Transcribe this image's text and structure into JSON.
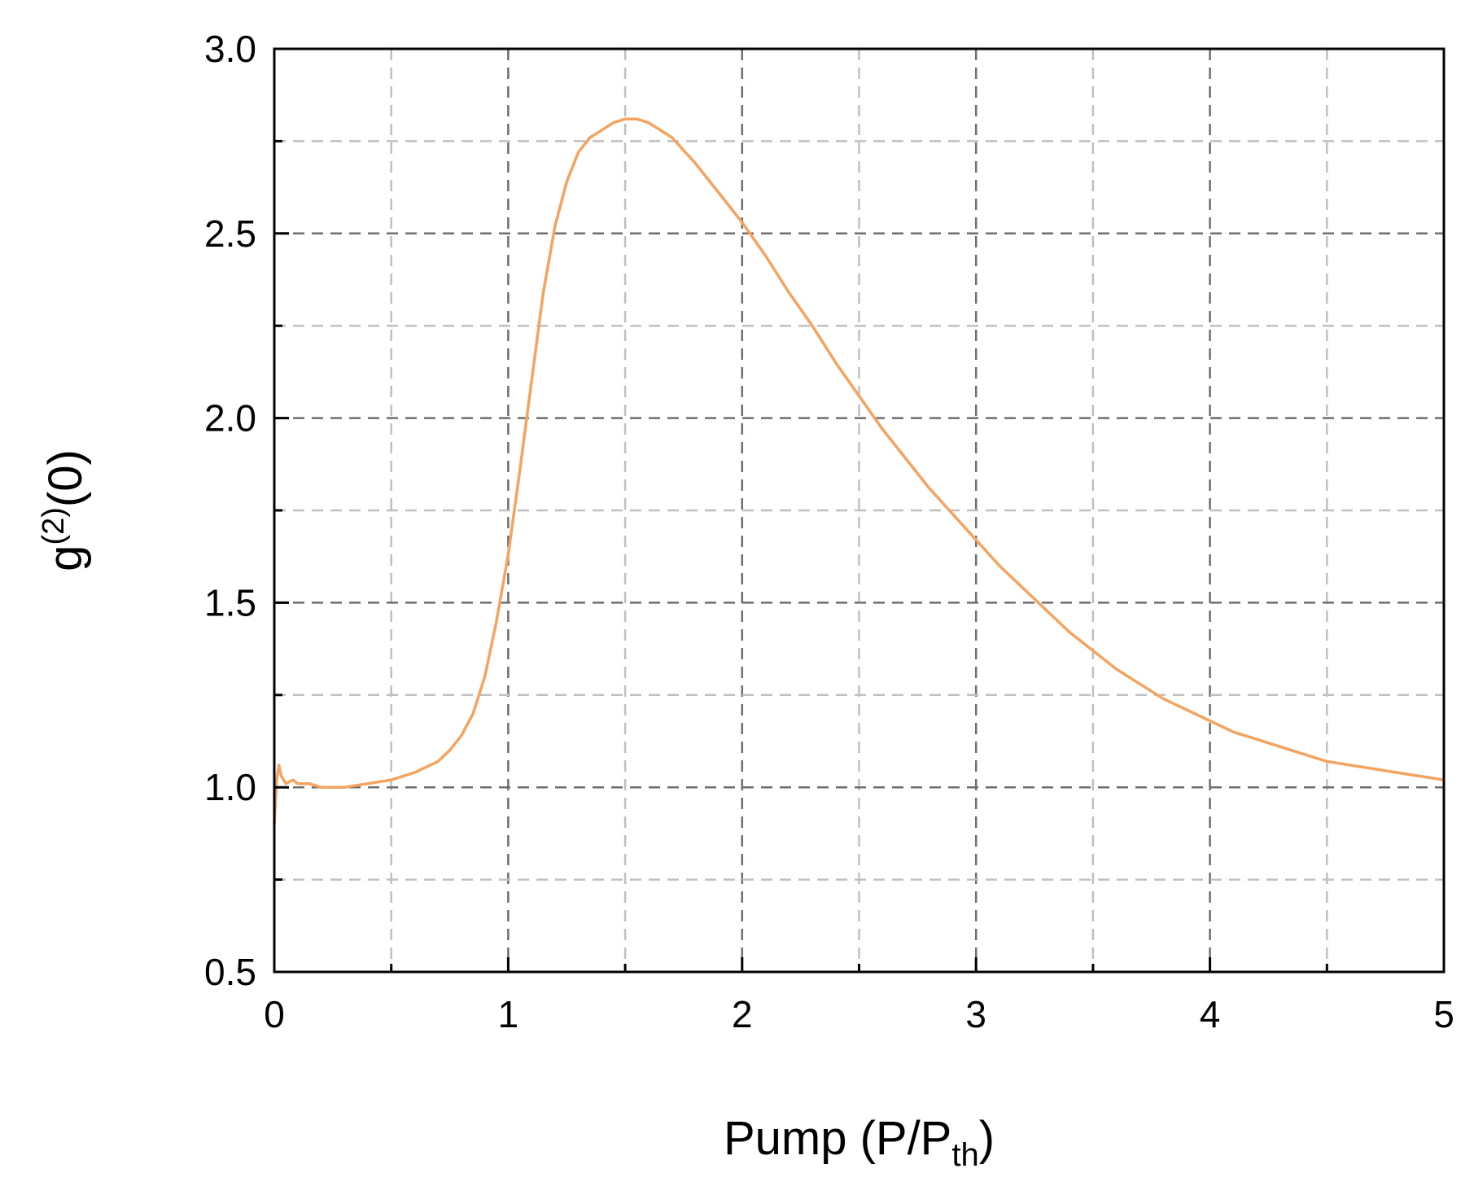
{
  "chart_data": {
    "type": "line",
    "title": "",
    "xlabel": {
      "base": "Pump (P/P",
      "sub": "th",
      "tail": ")"
    },
    "ylabel": {
      "base": "g",
      "sup": "(2)",
      "tail": "(0)"
    },
    "xlim": [
      0,
      5
    ],
    "ylim": [
      0.5,
      3.0
    ],
    "xticks": [
      "0",
      "1",
      "2",
      "3",
      "4",
      "5"
    ],
    "yticks": [
      "0.5",
      "1.0",
      "1.5",
      "2.0",
      "2.5",
      "3.0"
    ],
    "grid": true,
    "line_color": "#F4A460",
    "series": [
      {
        "x": [
          0.0,
          0.01,
          0.02,
          0.03,
          0.05,
          0.08,
          0.1,
          0.15,
          0.2,
          0.25,
          0.3,
          0.4,
          0.5,
          0.6,
          0.7,
          0.75,
          0.8,
          0.85,
          0.9,
          0.95,
          1.0,
          1.05,
          1.1,
          1.15,
          1.2,
          1.25,
          1.3,
          1.35,
          1.4,
          1.45,
          1.5,
          1.55,
          1.6,
          1.7,
          1.8,
          1.9,
          2.0,
          2.1,
          2.2,
          2.3,
          2.4,
          2.5,
          2.6,
          2.7,
          2.8,
          2.9,
          3.0,
          3.1,
          3.2,
          3.3,
          3.4,
          3.5,
          3.6,
          3.7,
          3.8,
          3.9,
          4.0,
          4.1,
          4.2,
          4.3,
          4.4,
          4.5,
          4.6,
          4.7,
          4.8,
          4.9,
          5.0
        ],
        "y": [
          0.9,
          1.02,
          1.06,
          1.03,
          1.01,
          1.02,
          1.01,
          1.01,
          1.0,
          1.0,
          1.0,
          1.01,
          1.02,
          1.04,
          1.07,
          1.1,
          1.14,
          1.2,
          1.3,
          1.45,
          1.63,
          1.86,
          2.1,
          2.34,
          2.52,
          2.64,
          2.72,
          2.76,
          2.78,
          2.8,
          2.81,
          2.81,
          2.8,
          2.76,
          2.69,
          2.61,
          2.53,
          2.44,
          2.34,
          2.25,
          2.15,
          2.06,
          1.97,
          1.89,
          1.81,
          1.74,
          1.67,
          1.6,
          1.54,
          1.48,
          1.42,
          1.37,
          1.32,
          1.28,
          1.24,
          1.21,
          1.18,
          1.15,
          1.13,
          1.11,
          1.09,
          1.07,
          1.06,
          1.05,
          1.04,
          1.03,
          1.02
        ]
      }
    ]
  }
}
